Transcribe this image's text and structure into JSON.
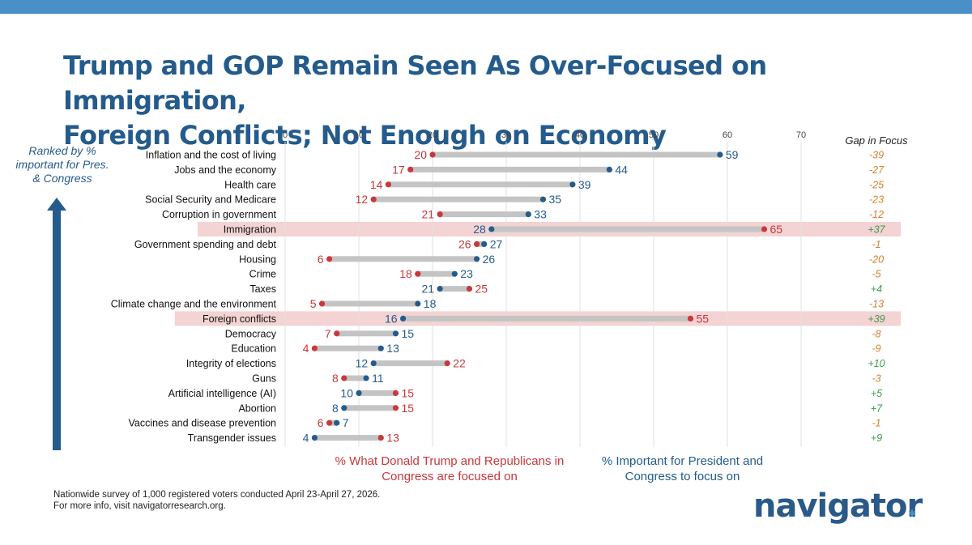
{
  "title_lines": [
    "Trump and GOP Remain Seen As Over-Focused on Immigration,",
    "Foreign Conflicts; Not Enough on Economy"
  ],
  "rank_note": "Ranked by % important for Pres. & Congress",
  "legend": {
    "focused": "%  What Donald Trump and Republicans in Congress are focused on",
    "important": "% Important for President and Congress to focus on"
  },
  "footer": {
    "line1": "Nationwide survey of 1,000 registered voters conducted April 23-April 27, 2026.",
    "line2": "For more info, visit navigatorresearch.org."
  },
  "logo": "navigator",
  "colors": {
    "focused": "#c8383c",
    "important": "#245b8c",
    "bar": "#c4c4c4",
    "highlight": "#f3d3d3",
    "gap_negative": "#d4802e",
    "gap_positive": "#3e9a4f",
    "title": "#245b8c"
  },
  "chart_data": {
    "type": "dumbbell",
    "x_ticks": [
      0,
      10,
      20,
      30,
      40,
      50,
      60,
      70
    ],
    "xlim": [
      0,
      70
    ],
    "grid": true,
    "gap_header": "Gap in Focus",
    "series": [
      {
        "name": "%  What Donald Trump and Republicans in Congress are focused on",
        "key": "focused"
      },
      {
        "name": "% Important for President and Congress to focus on",
        "key": "important"
      }
    ],
    "rows": [
      {
        "label": "Inflation and the cost of living",
        "focused": 20,
        "important": 59,
        "gap": "-39",
        "highlight": false
      },
      {
        "label": "Jobs and the economy",
        "focused": 17,
        "important": 44,
        "gap": "-27",
        "highlight": false
      },
      {
        "label": "Health care",
        "focused": 14,
        "important": 39,
        "gap": "-25",
        "highlight": false
      },
      {
        "label": "Social Security and Medicare",
        "focused": 12,
        "important": 35,
        "gap": "-23",
        "highlight": false
      },
      {
        "label": "Corruption in government",
        "focused": 21,
        "important": 33,
        "gap": "-12",
        "highlight": false
      },
      {
        "label": "Immigration",
        "focused": 65,
        "important": 28,
        "gap": "+37",
        "highlight": true
      },
      {
        "label": "Government spending and debt",
        "focused": 26,
        "important": 27,
        "gap": "-1",
        "highlight": false
      },
      {
        "label": "Housing",
        "focused": 6,
        "important": 26,
        "gap": "-20",
        "highlight": false
      },
      {
        "label": "Crime",
        "focused": 18,
        "important": 23,
        "gap": "-5",
        "highlight": false
      },
      {
        "label": "Taxes",
        "focused": 25,
        "important": 21,
        "gap": "+4",
        "highlight": false
      },
      {
        "label": "Climate change and the environment",
        "focused": 5,
        "important": 18,
        "gap": "-13",
        "highlight": false
      },
      {
        "label": "Foreign conflicts",
        "focused": 55,
        "important": 16,
        "gap": "+39",
        "highlight": true
      },
      {
        "label": "Democracy",
        "focused": 7,
        "important": 15,
        "gap": "-8",
        "highlight": false
      },
      {
        "label": "Education",
        "focused": 4,
        "important": 13,
        "gap": "-9",
        "highlight": false
      },
      {
        "label": "Integrity of elections",
        "focused": 22,
        "important": 12,
        "gap": "+10",
        "highlight": false
      },
      {
        "label": "Guns",
        "focused": 8,
        "important": 11,
        "gap": "-3",
        "highlight": false
      },
      {
        "label": "Artificial intelligence (AI)",
        "focused": 15,
        "important": 10,
        "gap": "+5",
        "highlight": false
      },
      {
        "label": "Abortion",
        "focused": 15,
        "important": 8,
        "gap": "+7",
        "highlight": false
      },
      {
        "label": "Vaccines and disease prevention",
        "focused": 6,
        "important": 7,
        "gap": "-1",
        "highlight": false
      },
      {
        "label": "Transgender issues",
        "focused": 13,
        "important": 4,
        "gap": "+9",
        "highlight": false
      }
    ]
  }
}
